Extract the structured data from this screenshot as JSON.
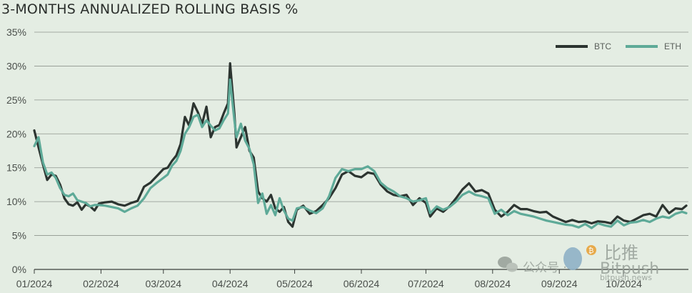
{
  "chart_data": {
    "type": "line",
    "title": "3-MONTHS ANNUALIZED ROLLING BASIS %",
    "xlabel": "",
    "ylabel": "",
    "ylim": [
      0,
      35
    ],
    "yticks": [
      0,
      5,
      10,
      15,
      20,
      25,
      30,
      35
    ],
    "ytick_labels": [
      "0%",
      "5%",
      "10%",
      "15%",
      "20%",
      "25%",
      "30%",
      "35%"
    ],
    "xlim": [
      "2024-01-01",
      "2024-10-31"
    ],
    "xticks": [
      "2024-01-01",
      "2024-02-01",
      "2024-03-01",
      "2024-04-01",
      "2024-05-01",
      "2024-06-01",
      "2024-07-01",
      "2024-08-01",
      "2024-09-01",
      "2024-10-01"
    ],
    "xtick_labels": [
      "01/2024",
      "02/2024",
      "03/2024",
      "04/2024",
      "05/2024",
      "06/2024",
      "07/2024",
      "08/2024",
      "09/2024",
      "10/2024"
    ],
    "grid": "horizontal",
    "legend_position": "top-right",
    "series": [
      {
        "name": "BTC",
        "color": "#2c3430",
        "points": [
          [
            "2024-01-01",
            20.5
          ],
          [
            "2024-01-03",
            18.0
          ],
          [
            "2024-01-05",
            15.5
          ],
          [
            "2024-01-07",
            13.2
          ],
          [
            "2024-01-09",
            14.0
          ],
          [
            "2024-01-11",
            13.8
          ],
          [
            "2024-01-13",
            12.5
          ],
          [
            "2024-01-15",
            10.5
          ],
          [
            "2024-01-17",
            9.6
          ],
          [
            "2024-01-19",
            9.4
          ],
          [
            "2024-01-21",
            9.9
          ],
          [
            "2024-01-23",
            8.8
          ],
          [
            "2024-01-25",
            9.6
          ],
          [
            "2024-01-27",
            9.3
          ],
          [
            "2024-01-29",
            8.7
          ],
          [
            "2024-01-31",
            9.7
          ],
          [
            "2024-02-03",
            9.9
          ],
          [
            "2024-02-06",
            10.0
          ],
          [
            "2024-02-09",
            9.6
          ],
          [
            "2024-02-12",
            9.4
          ],
          [
            "2024-02-15",
            9.8
          ],
          [
            "2024-02-18",
            10.1
          ],
          [
            "2024-02-21",
            12.2
          ],
          [
            "2024-02-24",
            12.8
          ],
          [
            "2024-02-27",
            13.8
          ],
          [
            "2024-03-01",
            14.8
          ],
          [
            "2024-03-03",
            15.0
          ],
          [
            "2024-03-05",
            16.0
          ],
          [
            "2024-03-07",
            16.8
          ],
          [
            "2024-03-09",
            18.5
          ],
          [
            "2024-03-11",
            22.5
          ],
          [
            "2024-03-13",
            21.2
          ],
          [
            "2024-03-15",
            24.5
          ],
          [
            "2024-03-17",
            23.2
          ],
          [
            "2024-03-19",
            21.5
          ],
          [
            "2024-03-21",
            24.0
          ],
          [
            "2024-03-23",
            19.5
          ],
          [
            "2024-03-25",
            21.0
          ],
          [
            "2024-03-27",
            21.3
          ],
          [
            "2024-03-29",
            23.0
          ],
          [
            "2024-03-31",
            24.5
          ],
          [
            "2024-04-01",
            30.4
          ],
          [
            "2024-04-03",
            23.0
          ],
          [
            "2024-04-04",
            18.0
          ],
          [
            "2024-04-06",
            19.5
          ],
          [
            "2024-04-08",
            21.0
          ],
          [
            "2024-04-10",
            17.5
          ],
          [
            "2024-04-12",
            16.5
          ],
          [
            "2024-04-14",
            11.5
          ],
          [
            "2024-04-16",
            10.5
          ],
          [
            "2024-04-18",
            10.0
          ],
          [
            "2024-04-20",
            11.0
          ],
          [
            "2024-04-22",
            9.0
          ],
          [
            "2024-04-24",
            8.5
          ],
          [
            "2024-04-26",
            9.2
          ],
          [
            "2024-04-28",
            7.0
          ],
          [
            "2024-04-30",
            6.3
          ],
          [
            "2024-05-02",
            8.8
          ],
          [
            "2024-05-05",
            9.4
          ],
          [
            "2024-05-08",
            8.2
          ],
          [
            "2024-05-11",
            8.6
          ],
          [
            "2024-05-14",
            9.5
          ],
          [
            "2024-05-17",
            10.5
          ],
          [
            "2024-05-20",
            12.0
          ],
          [
            "2024-05-23",
            14.0
          ],
          [
            "2024-05-26",
            14.5
          ],
          [
            "2024-05-29",
            13.8
          ],
          [
            "2024-06-01",
            13.6
          ],
          [
            "2024-06-04",
            14.3
          ],
          [
            "2024-06-07",
            14.1
          ],
          [
            "2024-06-10",
            12.5
          ],
          [
            "2024-06-13",
            11.5
          ],
          [
            "2024-06-16",
            11.0
          ],
          [
            "2024-06-19",
            10.8
          ],
          [
            "2024-06-22",
            11.0
          ],
          [
            "2024-06-25",
            9.5
          ],
          [
            "2024-06-28",
            10.5
          ],
          [
            "2024-07-01",
            9.8
          ],
          [
            "2024-07-03",
            7.8
          ],
          [
            "2024-07-06",
            9.0
          ],
          [
            "2024-07-09",
            8.5
          ],
          [
            "2024-07-12",
            9.3
          ],
          [
            "2024-07-15",
            10.5
          ],
          [
            "2024-07-18",
            11.8
          ],
          [
            "2024-07-21",
            12.7
          ],
          [
            "2024-07-24",
            11.5
          ],
          [
            "2024-07-27",
            11.7
          ],
          [
            "2024-07-30",
            11.2
          ],
          [
            "2024-08-02",
            8.8
          ],
          [
            "2024-08-05",
            7.8
          ],
          [
            "2024-08-08",
            8.5
          ],
          [
            "2024-08-11",
            9.5
          ],
          [
            "2024-08-14",
            8.9
          ],
          [
            "2024-08-17",
            8.9
          ],
          [
            "2024-08-20",
            8.6
          ],
          [
            "2024-08-23",
            8.4
          ],
          [
            "2024-08-26",
            8.5
          ],
          [
            "2024-08-29",
            7.8
          ],
          [
            "2024-09-01",
            7.4
          ],
          [
            "2024-09-04",
            7.0
          ],
          [
            "2024-09-07",
            7.3
          ],
          [
            "2024-09-10",
            7.0
          ],
          [
            "2024-09-13",
            7.1
          ],
          [
            "2024-09-16",
            6.8
          ],
          [
            "2024-09-19",
            7.1
          ],
          [
            "2024-09-22",
            7.0
          ],
          [
            "2024-09-25",
            6.8
          ],
          [
            "2024-09-28",
            7.8
          ],
          [
            "2024-10-01",
            7.2
          ],
          [
            "2024-10-04",
            7.0
          ],
          [
            "2024-10-07",
            7.5
          ],
          [
            "2024-10-10",
            8.0
          ],
          [
            "2024-10-13",
            8.2
          ],
          [
            "2024-10-16",
            7.8
          ],
          [
            "2024-10-19",
            9.5
          ],
          [
            "2024-10-22",
            8.3
          ],
          [
            "2024-10-25",
            9.0
          ],
          [
            "2024-10-28",
            8.9
          ],
          [
            "2024-10-30",
            9.4
          ]
        ]
      },
      {
        "name": "ETH",
        "color": "#5eaa98",
        "points": [
          [
            "2024-01-01",
            18.2
          ],
          [
            "2024-01-03",
            19.5
          ],
          [
            "2024-01-05",
            15.8
          ],
          [
            "2024-01-07",
            14.0
          ],
          [
            "2024-01-09",
            14.3
          ],
          [
            "2024-01-11",
            13.5
          ],
          [
            "2024-01-13",
            12.0
          ],
          [
            "2024-01-15",
            11.0
          ],
          [
            "2024-01-17",
            10.8
          ],
          [
            "2024-01-19",
            11.2
          ],
          [
            "2024-01-21",
            10.2
          ],
          [
            "2024-01-23",
            10.0
          ],
          [
            "2024-01-25",
            9.8
          ],
          [
            "2024-01-27",
            9.3
          ],
          [
            "2024-01-29",
            9.5
          ],
          [
            "2024-01-31",
            9.5
          ],
          [
            "2024-02-03",
            9.4
          ],
          [
            "2024-02-06",
            9.2
          ],
          [
            "2024-02-09",
            9.0
          ],
          [
            "2024-02-12",
            8.5
          ],
          [
            "2024-02-15",
            9.0
          ],
          [
            "2024-02-18",
            9.4
          ],
          [
            "2024-02-21",
            10.5
          ],
          [
            "2024-02-24",
            12.0
          ],
          [
            "2024-02-27",
            12.8
          ],
          [
            "2024-03-01",
            13.5
          ],
          [
            "2024-03-03",
            14.0
          ],
          [
            "2024-03-05",
            15.3
          ],
          [
            "2024-03-07",
            16.0
          ],
          [
            "2024-03-09",
            17.5
          ],
          [
            "2024-03-11",
            20.0
          ],
          [
            "2024-03-13",
            21.0
          ],
          [
            "2024-03-15",
            22.5
          ],
          [
            "2024-03-17",
            22.8
          ],
          [
            "2024-03-19",
            21.0
          ],
          [
            "2024-03-21",
            22.0
          ],
          [
            "2024-03-23",
            21.2
          ],
          [
            "2024-03-25",
            20.5
          ],
          [
            "2024-03-27",
            20.8
          ],
          [
            "2024-03-29",
            22.0
          ],
          [
            "2024-03-31",
            23.0
          ],
          [
            "2024-04-01",
            28.0
          ],
          [
            "2024-04-03",
            22.0
          ],
          [
            "2024-04-04",
            19.5
          ],
          [
            "2024-04-06",
            21.5
          ],
          [
            "2024-04-08",
            19.0
          ],
          [
            "2024-04-10",
            17.8
          ],
          [
            "2024-04-12",
            15.5
          ],
          [
            "2024-04-14",
            9.8
          ],
          [
            "2024-04-16",
            11.2
          ],
          [
            "2024-04-18",
            8.2
          ],
          [
            "2024-04-20",
            9.5
          ],
          [
            "2024-04-22",
            8.0
          ],
          [
            "2024-04-24",
            10.5
          ],
          [
            "2024-04-26",
            8.7
          ],
          [
            "2024-04-28",
            7.5
          ],
          [
            "2024-04-30",
            7.2
          ],
          [
            "2024-05-02",
            9.0
          ],
          [
            "2024-05-05",
            9.2
          ],
          [
            "2024-05-08",
            8.7
          ],
          [
            "2024-05-11",
            8.3
          ],
          [
            "2024-05-14",
            9.0
          ],
          [
            "2024-05-17",
            10.8
          ],
          [
            "2024-05-20",
            13.5
          ],
          [
            "2024-05-23",
            14.8
          ],
          [
            "2024-05-26",
            14.5
          ],
          [
            "2024-05-29",
            14.8
          ],
          [
            "2024-06-01",
            14.8
          ],
          [
            "2024-06-04",
            15.2
          ],
          [
            "2024-06-07",
            14.5
          ],
          [
            "2024-06-10",
            12.8
          ],
          [
            "2024-06-13",
            12.0
          ],
          [
            "2024-06-16",
            11.5
          ],
          [
            "2024-06-19",
            10.8
          ],
          [
            "2024-06-22",
            10.5
          ],
          [
            "2024-06-25",
            10.0
          ],
          [
            "2024-06-28",
            10.2
          ],
          [
            "2024-07-01",
            10.5
          ],
          [
            "2024-07-03",
            8.3
          ],
          [
            "2024-07-06",
            9.3
          ],
          [
            "2024-07-09",
            8.8
          ],
          [
            "2024-07-12",
            9.2
          ],
          [
            "2024-07-15",
            10.0
          ],
          [
            "2024-07-18",
            11.0
          ],
          [
            "2024-07-21",
            11.5
          ],
          [
            "2024-07-24",
            11.0
          ],
          [
            "2024-07-27",
            10.8
          ],
          [
            "2024-07-30",
            10.5
          ],
          [
            "2024-08-02",
            8.2
          ],
          [
            "2024-08-05",
            8.8
          ],
          [
            "2024-08-08",
            8.0
          ],
          [
            "2024-08-11",
            8.6
          ],
          [
            "2024-08-14",
            8.2
          ],
          [
            "2024-08-17",
            8.0
          ],
          [
            "2024-08-20",
            7.8
          ],
          [
            "2024-08-23",
            7.5
          ],
          [
            "2024-08-26",
            7.2
          ],
          [
            "2024-08-29",
            7.0
          ],
          [
            "2024-09-01",
            6.8
          ],
          [
            "2024-09-04",
            6.6
          ],
          [
            "2024-09-07",
            6.5
          ],
          [
            "2024-09-10",
            6.2
          ],
          [
            "2024-09-13",
            6.7
          ],
          [
            "2024-09-16",
            6.1
          ],
          [
            "2024-09-19",
            6.8
          ],
          [
            "2024-09-22",
            6.5
          ],
          [
            "2024-09-25",
            6.3
          ],
          [
            "2024-09-28",
            7.2
          ],
          [
            "2024-10-01",
            6.5
          ],
          [
            "2024-10-04",
            6.9
          ],
          [
            "2024-10-07",
            7.0
          ],
          [
            "2024-10-10",
            7.3
          ],
          [
            "2024-10-13",
            7.0
          ],
          [
            "2024-10-16",
            7.5
          ],
          [
            "2024-10-19",
            7.8
          ],
          [
            "2024-10-22",
            7.6
          ],
          [
            "2024-10-25",
            8.2
          ],
          [
            "2024-10-28",
            8.5
          ],
          [
            "2024-10-30",
            8.3
          ]
        ]
      }
    ]
  },
  "watermark": {
    "wechat_text": "公众号 · ",
    "brand_cn": "比推",
    "brand_en": "Bitpush",
    "brand_url": "bitpush.news",
    "icon": "wechat-icon"
  }
}
